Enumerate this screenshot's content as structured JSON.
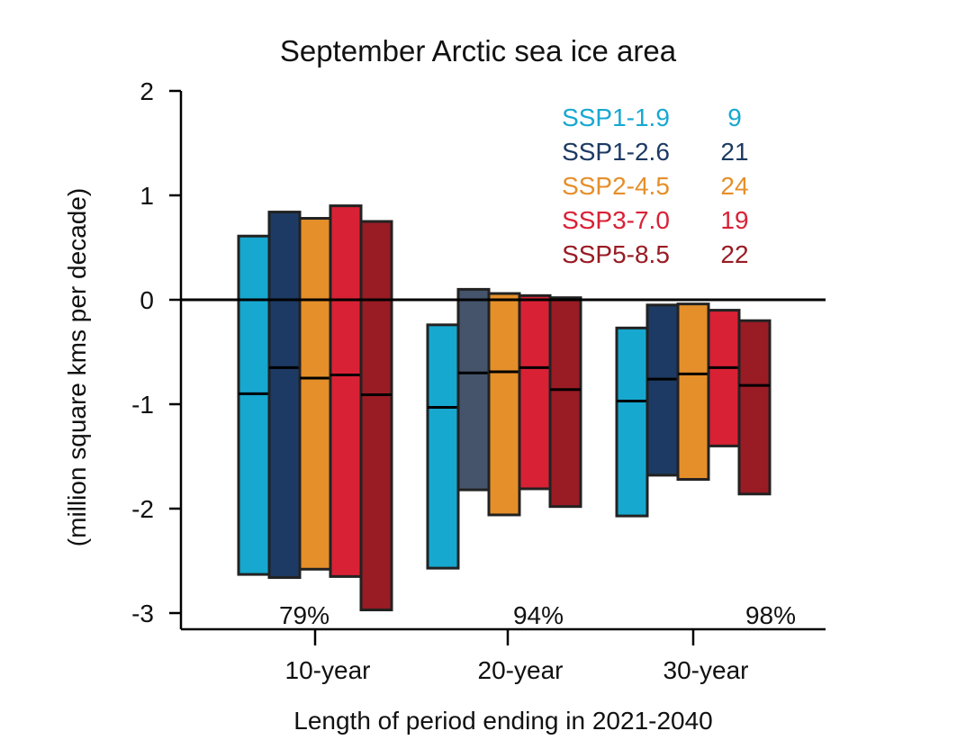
{
  "chart_data": {
    "type": "bar",
    "subtype": "floating-range-with-median",
    "title": "September Arctic sea ice area",
    "xlabel": "Length of period ending in 2021-2040",
    "ylabel": "(million square kms per decade)",
    "ylim": [
      -3.2,
      2
    ],
    "yticks": [
      2,
      1,
      0,
      -1,
      -2,
      -3
    ],
    "ytick_labels": [
      "2",
      "1",
      "0",
      "-1",
      "-2",
      "-3"
    ],
    "zero_line": true,
    "grid": false,
    "legend_position": "top-right",
    "categories": [
      "10-year",
      "20-year",
      "30-year"
    ],
    "category_annotations": [
      "79%",
      "94%",
      "98%"
    ],
    "series": [
      {
        "name": "SSP1-1.9",
        "count": "9",
        "color": "#17a8d0",
        "top": [
          0.61,
          -0.24,
          -0.27
        ],
        "median": [
          -0.9,
          -1.03,
          -0.97
        ],
        "bottom": [
          -2.63,
          -2.57,
          -2.07
        ]
      },
      {
        "name": "SSP1-2.6",
        "count": "21",
        "color": "#1c3a63",
        "alt_colors": [
          null,
          "#45546b",
          null
        ],
        "top": [
          0.84,
          0.1,
          -0.05
        ],
        "median": [
          -0.65,
          -0.7,
          -0.76
        ],
        "bottom": [
          -2.66,
          -1.82,
          -1.68
        ]
      },
      {
        "name": "SSP2-4.5",
        "count": "24",
        "color": "#e58f2a",
        "top": [
          0.78,
          0.06,
          -0.04
        ],
        "median": [
          -0.75,
          -0.69,
          -0.71
        ],
        "bottom": [
          -2.58,
          -2.06,
          -1.72
        ]
      },
      {
        "name": "SSP3-7.0",
        "count": "19",
        "color": "#d92135",
        "top": [
          0.9,
          0.04,
          -0.1
        ],
        "median": [
          -0.72,
          -0.65,
          -0.65
        ],
        "bottom": [
          -2.65,
          -1.81,
          -1.4
        ]
      },
      {
        "name": "SSP5-8.5",
        "count": "22",
        "color": "#991b24",
        "top": [
          0.75,
          0.02,
          -0.2
        ],
        "median": [
          -0.91,
          -0.86,
          -0.82
        ],
        "bottom": [
          -2.97,
          -1.98,
          -1.86
        ]
      }
    ]
  }
}
